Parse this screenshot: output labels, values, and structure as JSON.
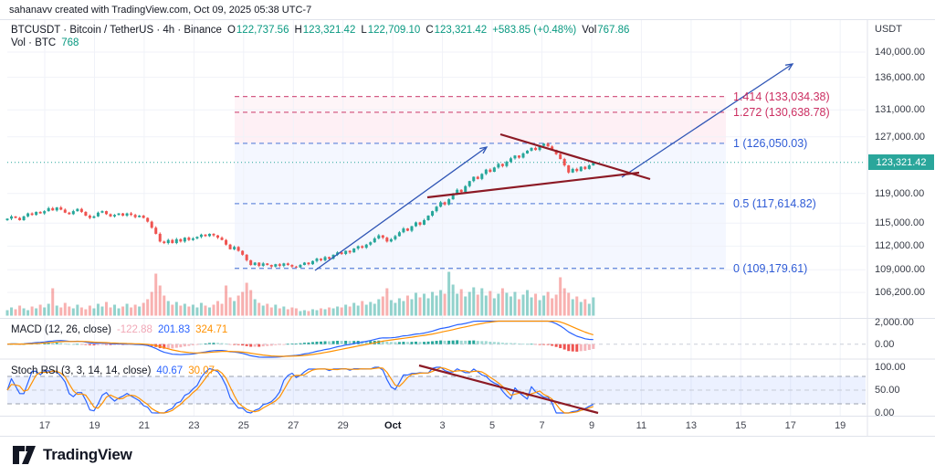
{
  "attribution": "sahanavv created with TradingView.com, Oct 09, 2025 05:38 UTC-7",
  "legend": {
    "symbol_line": {
      "title": "BTCUSDT · Bitcoin / TetherUS · 4h · Binance",
      "o_label": "O",
      "o": "122,737.56",
      "h_label": "H",
      "h": "123,321.42",
      "l_label": "L",
      "l": "122,709.10",
      "c_label": "C",
      "c": "123,321.42",
      "change": "+583.85 (+0.48%)",
      "vol_label": "Vol",
      "vol": "767.86"
    },
    "vol_line": {
      "label": "Vol · BTC",
      "value": "768"
    },
    "macd_line": {
      "label": "MACD (12, 26, close)",
      "hist": "-122.88",
      "macd": "201.83",
      "signal": "324.71"
    },
    "stoch_line": {
      "label": "Stoch RSI (3, 3, 14, 14, close)",
      "k": "40.67",
      "d": "30.07"
    }
  },
  "price_axis": {
    "currency": "USDT",
    "labels": [
      "140,000.00",
      "136,000.00",
      "131,000.00",
      "127,000.00",
      "119,000.00",
      "115,000.00",
      "112,000.00",
      "109,000.00",
      "106,200.00"
    ],
    "last_price": "123,321.42",
    "macd_labels": [
      "2,000.00",
      "0.00"
    ],
    "stoch_labels": [
      "100.00",
      "50.00",
      "0.00"
    ]
  },
  "time_axis": {
    "labels": [
      "17",
      "19",
      "21",
      "23",
      "25",
      "27",
      "29",
      "Oct",
      "3",
      "5",
      "7",
      "9",
      "11",
      "13",
      "15",
      "17",
      "19"
    ],
    "bold_label": "Oct"
  },
  "fib": {
    "levels": [
      {
        "label": "1.414 (133,034.38)",
        "price": 133034.38,
        "tone": "pink"
      },
      {
        "label": "1.272 (130,638.78)",
        "price": 130638.78,
        "tone": "pink"
      },
      {
        "label": "1 (126,050.03)",
        "price": 126050.03,
        "tone": "blue"
      },
      {
        "label": "0.5 (117,614.82)",
        "price": 117614.82,
        "tone": "blue"
      },
      {
        "label": "0 (109,179.61)",
        "price": 109179.61,
        "tone": "blue"
      }
    ]
  },
  "logo": {
    "text": "TradingView"
  },
  "colors": {
    "up": "#26a69a",
    "down": "#ef5350",
    "vol_up": "rgba(38,166,154,0.5)",
    "vol_down": "rgba(239,83,80,0.45)",
    "macd": "#2962ff",
    "signal": "#ff9100",
    "hist_pos": "#26a69a",
    "hist_pos_light": "#9fd8d2",
    "hist_neg": "#ef5350",
    "hist_neg_light": "#f5b5ba",
    "fib_blue": "#2e5bd6",
    "fib_pink": "#cc2f62",
    "fib_line_blue": "#6b8ede",
    "fib_line_pink": "#d45c84",
    "fill_pink_light": "rgba(236,64,122,0.05)",
    "fill_pink": "rgba(236,64,122,0.08)",
    "fill_blue": "rgba(41,98,255,0.05)",
    "stoch_band": "rgba(41,98,255,0.09)",
    "trend_red": "#8c1a25",
    "trend_blue": "#2f55b5",
    "badge_bg": "#2aa69b",
    "teal_text": "#089981",
    "hist_legend_pink": "#f1a8b7",
    "grid": "#f0f2f8",
    "sep": "#e0e3eb",
    "dash_gray": "#9aa0ac",
    "dash_gray_light": "#c6cbd6",
    "dotted_price": "#26a69a",
    "text": "#131722"
  },
  "chart_data": {
    "type": "candlestick",
    "symbol": "BTCUSDT",
    "name": "Bitcoin / TetherUS",
    "exchange": "Binance",
    "interval": "4h",
    "scale": "log",
    "title": "BTCUSDT · Bitcoin / TetherUS · 4h · Binance",
    "price_axis_ticks": [
      140000,
      136000,
      131000,
      127000,
      119000,
      115000,
      112000,
      109000,
      106200
    ],
    "macd_axis_ticks": [
      2000,
      0
    ],
    "stoch_axis_ticks": [
      100,
      50,
      0
    ],
    "time_ticks": [
      "17",
      "19",
      "21",
      "23",
      "25",
      "27",
      "29",
      "Oct",
      "3",
      "5",
      "7",
      "9",
      "11",
      "13",
      "15",
      "17",
      "19"
    ],
    "last_candle": {
      "open": 122737.56,
      "high": 123321.42,
      "low": 122709.1,
      "close": 123321.42,
      "change": 583.85,
      "change_pct": 0.48,
      "volume_btc": 767.86
    },
    "fib_extension": [
      {
        "level": "1.414",
        "price": 133034.38
      },
      {
        "level": "1.272",
        "price": 130638.78
      },
      {
        "level": "1",
        "price": 126050.03
      },
      {
        "level": "0.5",
        "price": 117614.82
      },
      {
        "level": "0",
        "price": 109179.61
      }
    ],
    "indicators": [
      {
        "name": "MACD",
        "params": "12, 26, close",
        "last": {
          "histogram": -122.88,
          "macd": 201.83,
          "signal": 324.71
        }
      },
      {
        "name": "Stoch RSI",
        "params": "3, 3, 14, 14, close",
        "last": {
          "k": 40.67,
          "d": 30.07
        }
      }
    ],
    "closes_k": [
      115.6,
      115.9,
      115.7,
      115.4,
      115.9,
      116.3,
      116.1,
      116.5,
      116.3,
      116.6,
      117.0,
      116.7,
      117.1,
      116.8,
      116.4,
      116.2,
      116.6,
      116.9,
      116.5,
      116.0,
      115.7,
      115.9,
      116.4,
      116.6,
      116.2,
      115.9,
      116.1,
      116.3,
      116.0,
      116.3,
      116.1,
      115.8,
      116.0,
      115.7,
      115.2,
      114.4,
      113.6,
      112.6,
      112.4,
      112.8,
      112.4,
      112.9,
      112.6,
      113.1,
      112.8,
      113.0,
      113.2,
      113.5,
      113.3,
      113.6,
      113.4,
      113.1,
      112.8,
      112.2,
      111.6,
      111.9,
      111.4,
      110.9,
      110.2,
      109.6,
      109.9,
      109.5,
      109.8,
      109.6,
      109.4,
      109.7,
      109.5,
      109.8,
      109.6,
      109.4,
      109.3,
      109.6,
      109.9,
      109.7,
      110.1,
      110.4,
      110.2,
      110.6,
      110.4,
      110.9,
      111.2,
      111.0,
      111.4,
      111.2,
      111.7,
      112.0,
      111.8,
      112.2,
      112.5,
      113.0,
      113.4,
      113.1,
      112.6,
      112.9,
      113.3,
      113.8,
      114.3,
      114.0,
      114.6,
      115.1,
      114.8,
      115.4,
      116.0,
      116.6,
      117.2,
      117.8,
      117.5,
      118.2,
      118.9,
      119.5,
      119.2,
      120.0,
      120.7,
      121.3,
      121.0,
      121.7,
      122.3,
      122.0,
      122.6,
      123.1,
      122.8,
      123.4,
      123.9,
      124.3,
      124.0,
      124.6,
      125.0,
      125.4,
      125.1,
      125.7,
      126.0,
      125.6,
      125.1,
      124.5,
      123.8,
      122.9,
      121.9,
      122.4,
      122.1,
      122.7,
      122.4,
      122.9,
      123.32
    ],
    "volumes": [
      6,
      9,
      7,
      11,
      8,
      6,
      10,
      8,
      12,
      9,
      13,
      30,
      11,
      9,
      14,
      10,
      8,
      12,
      9,
      7,
      11,
      8,
      13,
      10,
      15,
      9,
      12,
      8,
      10,
      13,
      9,
      12,
      10,
      14,
      18,
      26,
      46,
      33,
      22,
      16,
      12,
      15,
      11,
      13,
      10,
      12,
      9,
      14,
      11,
      9,
      12,
      16,
      13,
      33,
      20,
      16,
      22,
      26,
      36,
      28,
      18,
      14,
      11,
      13,
      9,
      12,
      8,
      10,
      7,
      9,
      8,
      5,
      6,
      5,
      7,
      6,
      8,
      7,
      9,
      8,
      10,
      9,
      12,
      10,
      14,
      11,
      16,
      12,
      15,
      13,
      18,
      21,
      30,
      17,
      14,
      19,
      16,
      22,
      18,
      25,
      20,
      24,
      19,
      26,
      22,
      28,
      24,
      48,
      34,
      24,
      29,
      21,
      26,
      31,
      23,
      30,
      22,
      27,
      19,
      24,
      30,
      25,
      21,
      26,
      18,
      23,
      28,
      20,
      24,
      17,
      22,
      26,
      19,
      23,
      42,
      30,
      25,
      18,
      21,
      15,
      18,
      13,
      20
    ],
    "drawings": {
      "trend_line_up": {
        "from": [
          345,
          296
        ],
        "to": [
          533,
          161
        ],
        "color_key": "trend_blue"
      },
      "projection_arrow": {
        "from": [
          681,
          194
        ],
        "to": [
          868,
          70
        ],
        "color_key": "trend_blue"
      },
      "triangle_upper": {
        "from": [
          548,
          147
        ],
        "to": [
          712,
          196
        ],
        "color_key": "trend_red"
      },
      "triangle_lower": {
        "from": [
          468,
          216
        ],
        "to": [
          700,
          189
        ],
        "color_key": "trend_red"
      },
      "stoch_trendline": {
        "from": [
          459,
          400
        ],
        "to": [
          655,
          452
        ],
        "color_key": "trend_red"
      }
    }
  }
}
